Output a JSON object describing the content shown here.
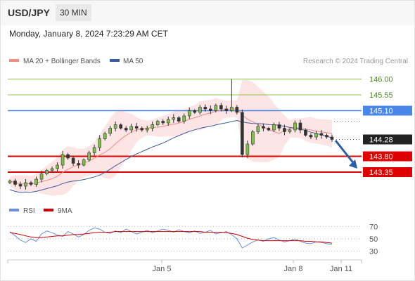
{
  "header": {
    "symbol": "USD/JPY",
    "interval": "30 MIN",
    "datetime": "Monday, January 8, 2024 7:23:29 AM CET"
  },
  "chart_data": [
    {
      "type": "candlestick",
      "legend": [
        {
          "name": "MA 20 + Bollinger Bands",
          "color": "#f28b82"
        },
        {
          "name": "MA 50",
          "color": "#3a5ba0"
        }
      ],
      "copyright": "Research © 2024 Trading Central",
      "ylim": [
        142.75,
        146.25
      ],
      "resistance_levels": [
        {
          "label": "146.00",
          "value": 146.0,
          "color": "#8bc34a"
        },
        {
          "label": "145.55",
          "value": 145.55,
          "color": "#8bc34a"
        },
        {
          "label": "145.10",
          "value": 145.1,
          "color": "#4a86e8"
        }
      ],
      "last_price": {
        "label": "144.28",
        "value": 144.28,
        "color": "#222222"
      },
      "support_levels": [
        {
          "label": "143.80",
          "value": 143.8,
          "color": "#e00000"
        },
        {
          "label": "143.35",
          "value": 143.35,
          "color": "#e00000"
        }
      ],
      "x_labels": [
        "Jan 5",
        "Jan 8",
        "Jan 11"
      ],
      "price_path": [
        143.1,
        143.0,
        142.95,
        143.05,
        143.0,
        143.15,
        143.3,
        143.4,
        143.45,
        143.55,
        143.85,
        143.75,
        143.6,
        143.55,
        143.7,
        143.9,
        144.05,
        144.3,
        144.45,
        144.6,
        144.7,
        144.6,
        144.55,
        144.65,
        144.6,
        144.55,
        144.6,
        144.7,
        144.8,
        144.75,
        144.85,
        144.9,
        144.8,
        144.95,
        145.1,
        145.05,
        145.2,
        145.15,
        145.1,
        145.25,
        145.15,
        145.1,
        145.2,
        145.05,
        143.85,
        144.15,
        144.5,
        144.65,
        144.6,
        144.55,
        144.7,
        144.6,
        144.5,
        144.55,
        144.75,
        144.55,
        144.4,
        144.35,
        144.45,
        144.4,
        144.35,
        144.28
      ]
    },
    {
      "type": "line",
      "legend": [
        {
          "name": "RSI",
          "color": "#6a8ee0"
        },
        {
          "name": "9MA",
          "color": "#d00000"
        }
      ],
      "y_ticks": [
        70,
        50,
        30
      ],
      "ylim": [
        20,
        80
      ],
      "rsi": [
        62,
        55,
        48,
        44,
        50,
        46,
        58,
        63,
        60,
        56,
        54,
        62,
        58,
        53,
        57,
        64,
        68,
        66,
        61,
        59,
        63,
        60,
        66,
        62,
        58,
        61,
        64,
        60,
        63,
        66,
        64,
        61,
        65,
        62,
        60,
        63,
        59,
        61,
        64,
        58,
        60,
        62,
        57,
        50,
        35,
        40,
        45,
        48,
        46,
        50,
        52,
        48,
        45,
        47,
        50,
        46,
        43,
        42,
        45,
        44,
        42,
        41
      ],
      "ma9": [
        60,
        59,
        57,
        55,
        53,
        52,
        52,
        53,
        54,
        55,
        55,
        56,
        57,
        57,
        58,
        59,
        60,
        61,
        61,
        61,
        62,
        62,
        62,
        62,
        62,
        62,
        62,
        62,
        62,
        62,
        62,
        62,
        62,
        62,
        62,
        62,
        62,
        61,
        61,
        61,
        61,
        60,
        59,
        57,
        54,
        51,
        49,
        48,
        47,
        47,
        47,
        47,
        47,
        47,
        47,
        47,
        46,
        46,
        45,
        45,
        44,
        43
      ]
    }
  ]
}
